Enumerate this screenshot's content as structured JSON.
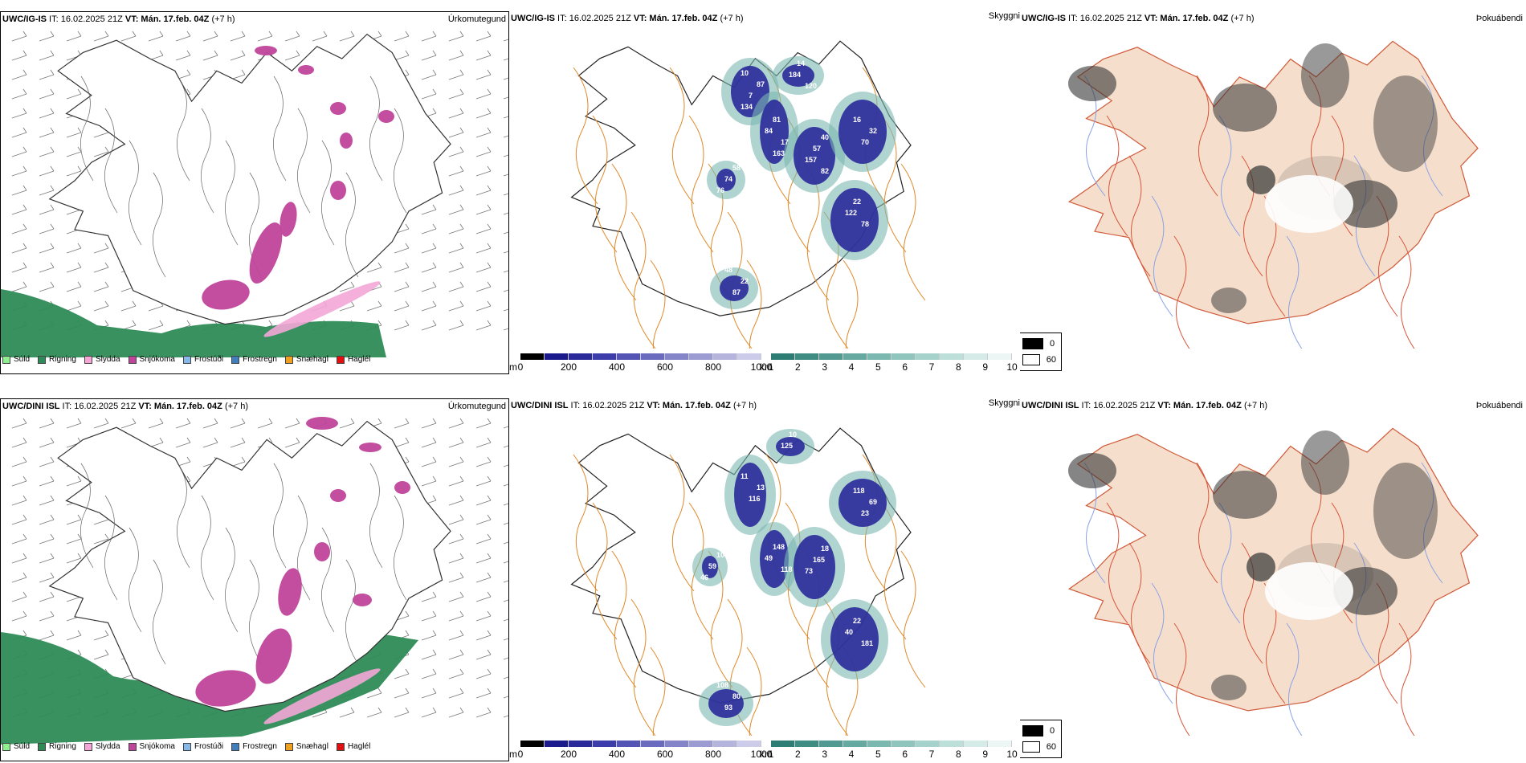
{
  "rows": [
    {
      "model_name": "UWC/IG-IS",
      "it_text": " IT: 16.02.2025 21Z ",
      "vt_label": "VT: Mán. 17.feb. 04Z",
      "offset_text": " (+7 h)",
      "precip_title": "Úrkomutegund",
      "vis_title": "Skyggni",
      "cloud_title": "Þokuábendi",
      "vis_labels": [
        "10",
        "81",
        "40",
        "16",
        "22",
        "58",
        "48",
        "14",
        "87",
        "84",
        "57",
        "32",
        "122",
        "74",
        "22",
        "184",
        "7",
        "17",
        "157",
        "70",
        "78",
        "76",
        "87",
        "120",
        "134",
        "163",
        "82"
      ]
    },
    {
      "model_name": "UWC/DINI ISL",
      "it_text": " IT: 16.02.2025 21Z ",
      "vt_label": "VT: Mán. 17.feb. 04Z",
      "offset_text": " (+7 h)",
      "precip_title": "Úrkomutegund",
      "vis_title": "Skyggni",
      "cloud_title": "Þokuábendi",
      "vis_labels": [
        "11",
        "148",
        "18",
        "118",
        "22",
        "108",
        "108",
        "10",
        "13",
        "49",
        "165",
        "69",
        "40",
        "59",
        "80",
        "125",
        "116",
        "118",
        "73",
        "23",
        "181",
        "46",
        "93"
      ]
    }
  ],
  "precip_legend": [
    {
      "label": "Súld",
      "color": "#90ee90"
    },
    {
      "label": "Rigning",
      "color": "#2e8b57"
    },
    {
      "label": "Slydda",
      "color": "#f4a6d7"
    },
    {
      "label": "Snjókoma",
      "color": "#c0449a"
    },
    {
      "label": "Frostúði",
      "color": "#87b8ea"
    },
    {
      "label": "Frostregn",
      "color": "#3f7fc0"
    },
    {
      "label": "Snæhagl",
      "color": "#f0a020"
    },
    {
      "label": "Haglél",
      "color": "#e01010"
    }
  ],
  "vis_bar_m": {
    "unit": "m",
    "ticks": [
      "0",
      "200",
      "400",
      "600",
      "800",
      "1000"
    ],
    "colors": [
      "#000000",
      "#1a1a8c",
      "#2a2a9a",
      "#3c3caa",
      "#5454b4",
      "#6a6abe",
      "#8484c8",
      "#9c9cd2",
      "#b4b4dc",
      "#ccccea"
    ]
  },
  "vis_bar_km": {
    "unit": "km",
    "ticks": [
      "1",
      "2",
      "3",
      "4",
      "5",
      "6",
      "7",
      "8",
      "9",
      "10"
    ],
    "colors": [
      "#2e7d74",
      "#3f8c83",
      "#529a91",
      "#66a9a0",
      "#7bb8b0",
      "#90c5be",
      "#a6d2cc",
      "#bddfda",
      "#d4ebe8",
      "#ecf6f4"
    ]
  },
  "cloud_legend": [
    {
      "label": "0",
      "color": "#000000"
    },
    {
      "label": "60",
      "color": "#ffffff"
    }
  ]
}
